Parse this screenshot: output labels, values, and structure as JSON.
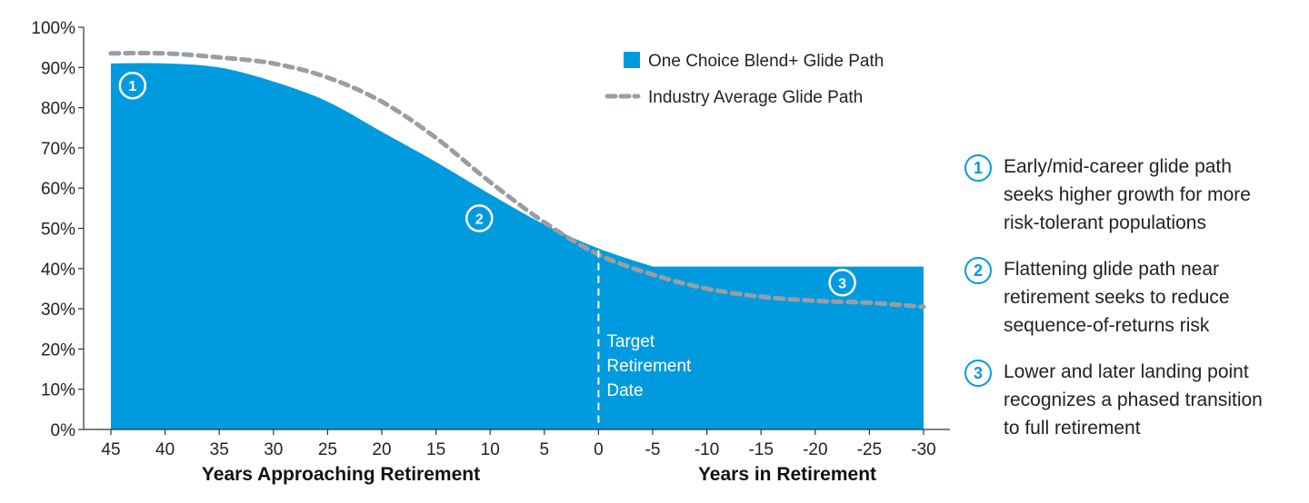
{
  "chart_data": {
    "type": "area",
    "ylim": [
      0,
      100
    ],
    "y_ticks": [
      "100%",
      "90%",
      "80%",
      "70%",
      "60%",
      "50%",
      "40%",
      "30%",
      "20%",
      "10%",
      "0%"
    ],
    "x_ticks": [
      "45",
      "40",
      "35",
      "30",
      "25",
      "20",
      "15",
      "10",
      "5",
      "0",
      "-5",
      "-10",
      "-15",
      "-20",
      "-25",
      "-30"
    ],
    "x_title_left": "Years Approaching Retirement",
    "x_title_right": "Years in Retirement",
    "legend_position": "top-right",
    "series": [
      {
        "name": "One Choice Blend+ Glide Path",
        "style": "area",
        "color": "#009bde",
        "x": [
          45,
          40,
          35,
          30,
          25,
          20,
          15,
          10,
          5,
          0,
          -5,
          -10,
          -15,
          -20,
          -25,
          -30
        ],
        "y": [
          91,
          91,
          90,
          86.5,
          81.5,
          74,
          66.5,
          58.5,
          51,
          45,
          40.5,
          40.5,
          40.5,
          40.5,
          40.5,
          40.5
        ]
      },
      {
        "name": "Industry Average Glide Path",
        "style": "dashed-line",
        "color": "#999ea3",
        "x": [
          45,
          40,
          35,
          30,
          25,
          20,
          15,
          10,
          5,
          0,
          -5,
          -10,
          -15,
          -20,
          -25,
          -30
        ],
        "y": [
          93.5,
          93.5,
          92.5,
          91,
          87.5,
          81.5,
          72.5,
          61.5,
          51.5,
          43.5,
          38.5,
          35,
          33,
          32,
          31.5,
          30.5
        ]
      }
    ],
    "reference_line": {
      "x": 0,
      "label_lines": [
        "Target",
        "Retirement",
        "Date"
      ]
    },
    "markers": [
      {
        "number": "1",
        "x": 43,
        "y": 85.5
      },
      {
        "number": "2",
        "x": 11,
        "y": 52.5
      },
      {
        "number": "3",
        "x": -22.5,
        "y": 36.5
      }
    ]
  },
  "notes": [
    {
      "number": "1",
      "lines": [
        "Early/mid-career glide path",
        "seeks higher growth for more",
        "risk-tolerant populations"
      ]
    },
    {
      "number": "2",
      "lines": [
        "Flattening glide path near",
        "retirement seeks to reduce",
        "sequence-of-returns risk"
      ]
    },
    {
      "number": "3",
      "lines": [
        "Lower and later landing point",
        "recognizes a phased transition",
        "to full retirement"
      ]
    }
  ]
}
